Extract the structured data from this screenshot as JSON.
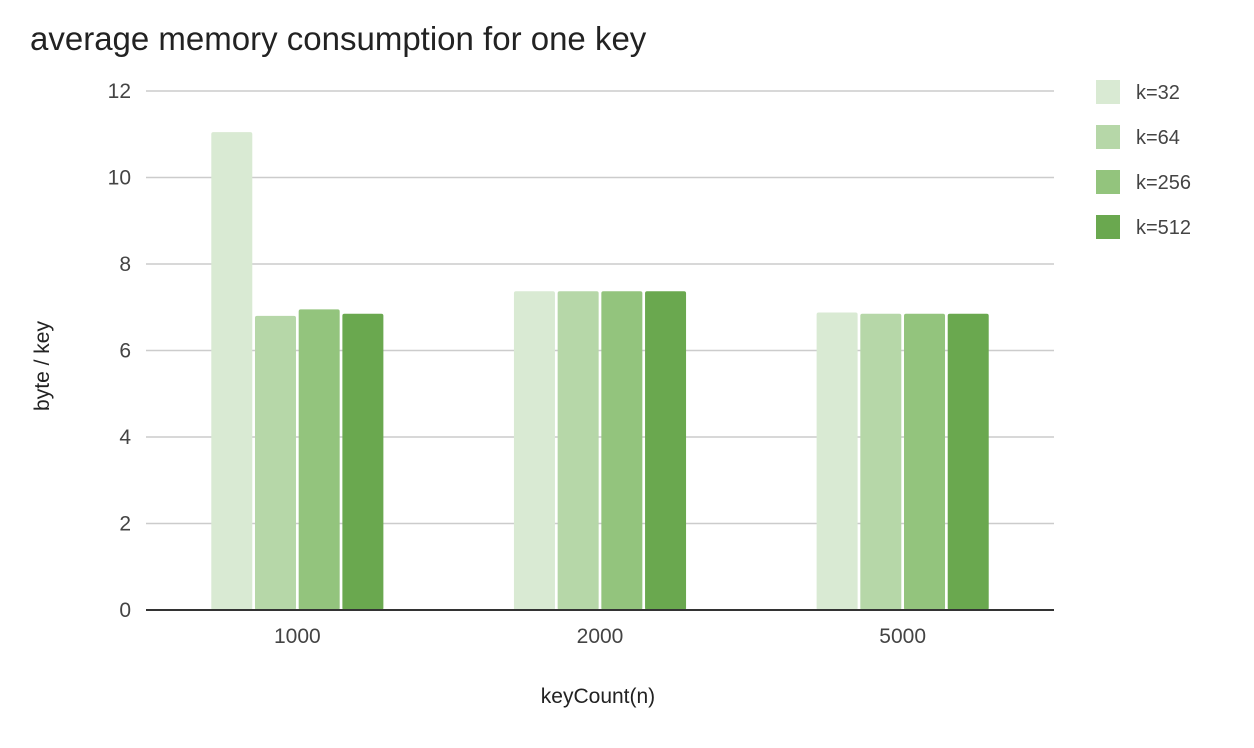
{
  "chart_data": {
    "type": "bar",
    "title": "average memory consumption for one key",
    "xlabel": "keyCount(n)",
    "ylabel": "byte / key",
    "categories": [
      "1000",
      "2000",
      "5000"
    ],
    "series": [
      {
        "name": "k=32",
        "color": "#d9ead3",
        "values": [
          11.05,
          7.37,
          6.88
        ]
      },
      {
        "name": "k=64",
        "color": "#b6d7a8",
        "values": [
          6.8,
          7.37,
          6.85
        ]
      },
      {
        "name": "k=256",
        "color": "#93c47d",
        "values": [
          6.95,
          7.37,
          6.85
        ]
      },
      {
        "name": "k=512",
        "color": "#6aa84f",
        "values": [
          6.85,
          7.37,
          6.85
        ]
      }
    ],
    "ylim": [
      0,
      12
    ],
    "yticks": [
      0,
      2,
      4,
      6,
      8,
      10,
      12
    ],
    "ytick_labels": [
      "0",
      "2",
      "4",
      "6",
      "8",
      "10",
      "12"
    ],
    "grid": true,
    "legend": "top-right"
  }
}
